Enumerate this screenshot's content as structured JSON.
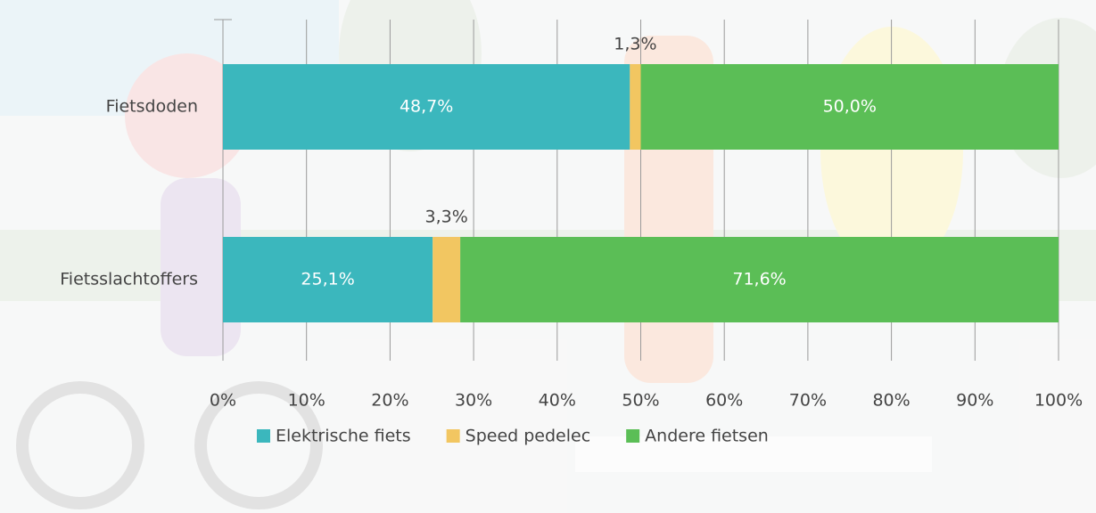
{
  "chart_data": {
    "type": "stacked-barh",
    "categories": [
      "Fietsdoden",
      "Fietsslachtoffers"
    ],
    "series": [
      {
        "name": "Elektrische fiets",
        "color": "#3bb7bd",
        "values": [
          48.7,
          25.1
        ],
        "value_labels": [
          "48,7%",
          "25,1%"
        ]
      },
      {
        "name": "Speed pedelec",
        "color": "#f2c661",
        "values": [
          1.3,
          3.3
        ],
        "value_labels": [
          "1,3%",
          "3,3%"
        ]
      },
      {
        "name": "Andere fietsen",
        "color": "#5bbe56",
        "values": [
          50.0,
          71.6
        ],
        "value_labels": [
          "50,0%",
          "71,6%"
        ]
      }
    ],
    "xlim": [
      0,
      100
    ],
    "xticks": [
      {
        "value": 0,
        "label": "0%"
      },
      {
        "value": 10,
        "label": "10%"
      },
      {
        "value": 20,
        "label": "20%"
      },
      {
        "value": 30,
        "label": "30%"
      },
      {
        "value": 40,
        "label": "40%"
      },
      {
        "value": 50,
        "label": "50%"
      },
      {
        "value": 60,
        "label": "60%"
      },
      {
        "value": 70,
        "label": "70%"
      },
      {
        "value": 80,
        "label": "80%"
      },
      {
        "value": 90,
        "label": "90%"
      },
      {
        "value": 100,
        "label": "100%"
      }
    ],
    "grid": true
  }
}
